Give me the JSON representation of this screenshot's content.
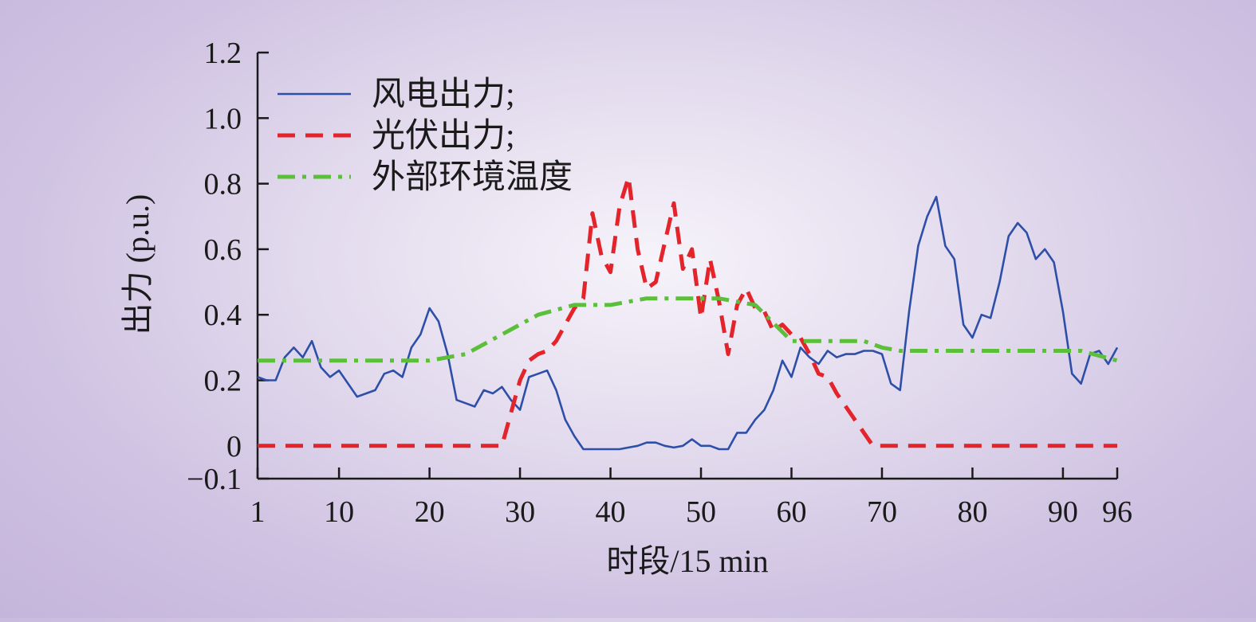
{
  "chart_data": {
    "type": "line",
    "title": "",
    "xlabel": "时段/15 min",
    "ylabel": "出力 (p.u.)",
    "xlim": [
      1,
      96
    ],
    "ylim": [
      -0.1,
      1.2
    ],
    "x_ticks": [
      1,
      10,
      20,
      30,
      40,
      50,
      60,
      70,
      80,
      90,
      96
    ],
    "x_tick_labels": [
      "1",
      "10",
      "20",
      "30",
      "40",
      "50",
      "60",
      "70",
      "80",
      "90",
      "96"
    ],
    "y_ticks": [
      -0.1,
      0,
      0.2,
      0.4,
      0.6,
      0.8,
      1.0,
      1.2
    ],
    "y_tick_labels": [
      "−0.1",
      "0",
      "0.2",
      "0.4",
      "0.6",
      "0.8",
      "1.0",
      "1.2"
    ],
    "grid": false,
    "legend_position": "top-left",
    "series": [
      {
        "name": "风电出力;",
        "color": "#2e4fa8",
        "style": "solid",
        "x": [
          1,
          2,
          3,
          4,
          5,
          6,
          7,
          8,
          9,
          10,
          11,
          12,
          13,
          14,
          15,
          16,
          17,
          18,
          19,
          20,
          21,
          22,
          23,
          24,
          25,
          26,
          27,
          28,
          29,
          30,
          31,
          32,
          33,
          34,
          35,
          36,
          37,
          38,
          39,
          40,
          41,
          42,
          43,
          44,
          45,
          46,
          47,
          48,
          49,
          50,
          51,
          52,
          53,
          54,
          55,
          56,
          57,
          58,
          59,
          60,
          61,
          62,
          63,
          64,
          65,
          66,
          67,
          68,
          69,
          70,
          71,
          72,
          73,
          74,
          75,
          76,
          77,
          78,
          79,
          80,
          81,
          82,
          83,
          84,
          85,
          86,
          87,
          88,
          89,
          90,
          91,
          92,
          93,
          94,
          95,
          96
        ],
        "values": [
          0.21,
          0.2,
          0.2,
          0.27,
          0.3,
          0.27,
          0.32,
          0.24,
          0.21,
          0.23,
          0.19,
          0.15,
          0.16,
          0.17,
          0.22,
          0.23,
          0.21,
          0.3,
          0.34,
          0.42,
          0.38,
          0.28,
          0.14,
          0.13,
          0.12,
          0.17,
          0.16,
          0.18,
          0.14,
          0.11,
          0.21,
          0.22,
          0.23,
          0.17,
          0.08,
          0.03,
          -0.01,
          -0.01,
          -0.01,
          -0.01,
          -0.01,
          -0.005,
          0.0,
          0.01,
          0.01,
          0.0,
          -0.005,
          0.0,
          0.02,
          0.0,
          0.0,
          -0.01,
          -0.01,
          0.04,
          0.04,
          0.08,
          0.11,
          0.17,
          0.26,
          0.21,
          0.3,
          0.27,
          0.25,
          0.29,
          0.27,
          0.28,
          0.28,
          0.29,
          0.29,
          0.28,
          0.19,
          0.17,
          0.41,
          0.61,
          0.7,
          0.76,
          0.61,
          0.57,
          0.37,
          0.33,
          0.4,
          0.39,
          0.5,
          0.64,
          0.68,
          0.65,
          0.57,
          0.6,
          0.56,
          0.41,
          0.22,
          0.19,
          0.28,
          0.29,
          0.25,
          0.3
        ]
      },
      {
        "name": "光伏出力;",
        "color": "#e3242b",
        "style": "dashed",
        "x": [
          1,
          28,
          29,
          30,
          31,
          32,
          33,
          34,
          35,
          36,
          37,
          38,
          39,
          40,
          41,
          42,
          43,
          44,
          45,
          46,
          47,
          48,
          49,
          50,
          51,
          52,
          53,
          54,
          55,
          56,
          57,
          58,
          59,
          60,
          61,
          62,
          63,
          64,
          65,
          66,
          67,
          68,
          69,
          96
        ],
        "values": [
          0,
          0,
          0.1,
          0.2,
          0.26,
          0.28,
          0.29,
          0.32,
          0.37,
          0.42,
          0.45,
          0.71,
          0.58,
          0.53,
          0.73,
          0.82,
          0.6,
          0.48,
          0.5,
          0.62,
          0.74,
          0.54,
          0.6,
          0.39,
          0.57,
          0.44,
          0.28,
          0.43,
          0.48,
          0.42,
          0.41,
          0.35,
          0.37,
          0.34,
          0.33,
          0.28,
          0.22,
          0.21,
          0.16,
          0.12,
          0.08,
          0.04,
          0.0,
          0.0
        ]
      },
      {
        "name": "外部环境温度",
        "color": "#5bbf3a",
        "style": "dashdot",
        "x": [
          1,
          20,
          24,
          28,
          32,
          36,
          40,
          44,
          48,
          52,
          56,
          60,
          62,
          64,
          66,
          68,
          70,
          72,
          76,
          80,
          84,
          88,
          92,
          96
        ],
        "values": [
          0.26,
          0.26,
          0.28,
          0.34,
          0.4,
          0.43,
          0.43,
          0.45,
          0.45,
          0.45,
          0.43,
          0.32,
          0.32,
          0.32,
          0.32,
          0.32,
          0.3,
          0.29,
          0.29,
          0.29,
          0.29,
          0.29,
          0.29,
          0.26
        ]
      }
    ]
  }
}
